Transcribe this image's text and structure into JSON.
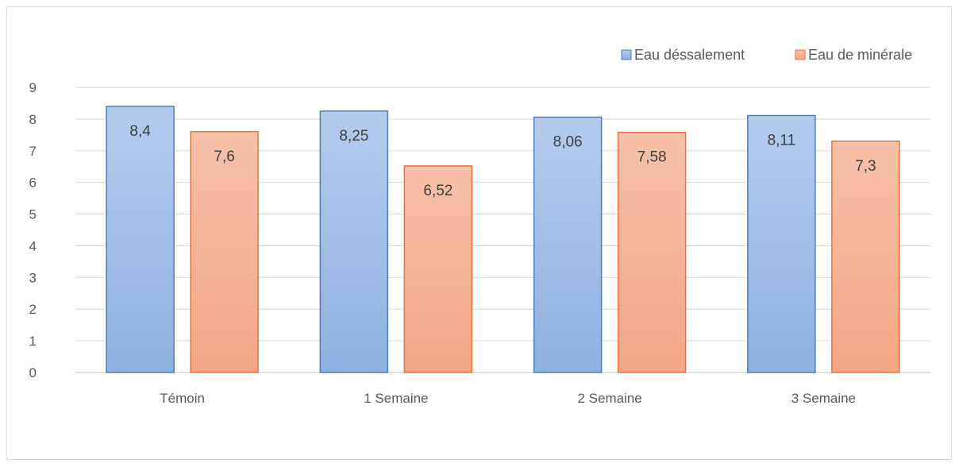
{
  "chart_data": {
    "type": "bar",
    "categories": [
      "Témoin",
      "1 Semaine",
      "2 Semaine",
      "3 Semaine"
    ],
    "series": [
      {
        "name": "Eau déssalement",
        "values": [
          8.4,
          8.25,
          8.06,
          8.11
        ],
        "labels": [
          "8,4",
          "8,25",
          "8,06",
          "8,11"
        ],
        "color_top": "#b4cbed",
        "color_bottom": "#8fb1e0",
        "border": "#4a7ebb"
      },
      {
        "name": "Eau de minérale",
        "values": [
          7.6,
          6.52,
          7.58,
          7.3
        ],
        "labels": [
          "7,6",
          "6,52",
          "7,58",
          "7,3"
        ],
        "color_top": "#f7c0aa",
        "color_bottom": "#f3a584",
        "border": "#e8743b"
      }
    ],
    "ylim": [
      0,
      9
    ],
    "yticks": [
      "0",
      "1",
      "2",
      "3",
      "4",
      "5",
      "6",
      "7",
      "8",
      "9"
    ],
    "grid": true,
    "legend_position": "top-right"
  }
}
